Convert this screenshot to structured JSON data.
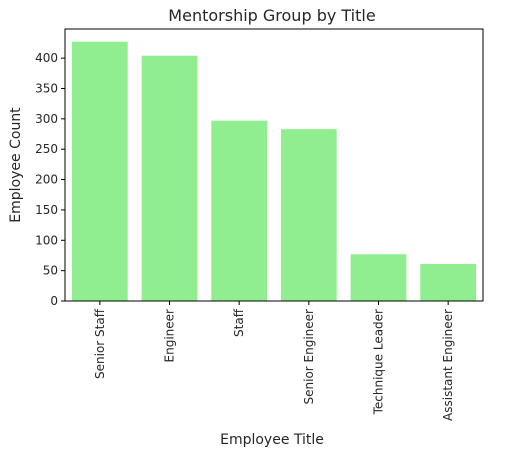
{
  "chart_data": {
    "type": "bar",
    "title": "Mentorship Group by Title",
    "xlabel": "Employee Title",
    "ylabel": "Employee Count",
    "categories": [
      "Senior Staff",
      "Engineer",
      "Staff",
      "Senior Engineer",
      "Technique Leader",
      "Assistant Engineer"
    ],
    "values": [
      427,
      404,
      297,
      283,
      77,
      61
    ],
    "ylim": [
      0,
      448
    ],
    "yticks": [
      0,
      50,
      100,
      150,
      200,
      250,
      300,
      350,
      400
    ],
    "bar_color": "#90ee90",
    "grid": false,
    "legend": "none"
  }
}
